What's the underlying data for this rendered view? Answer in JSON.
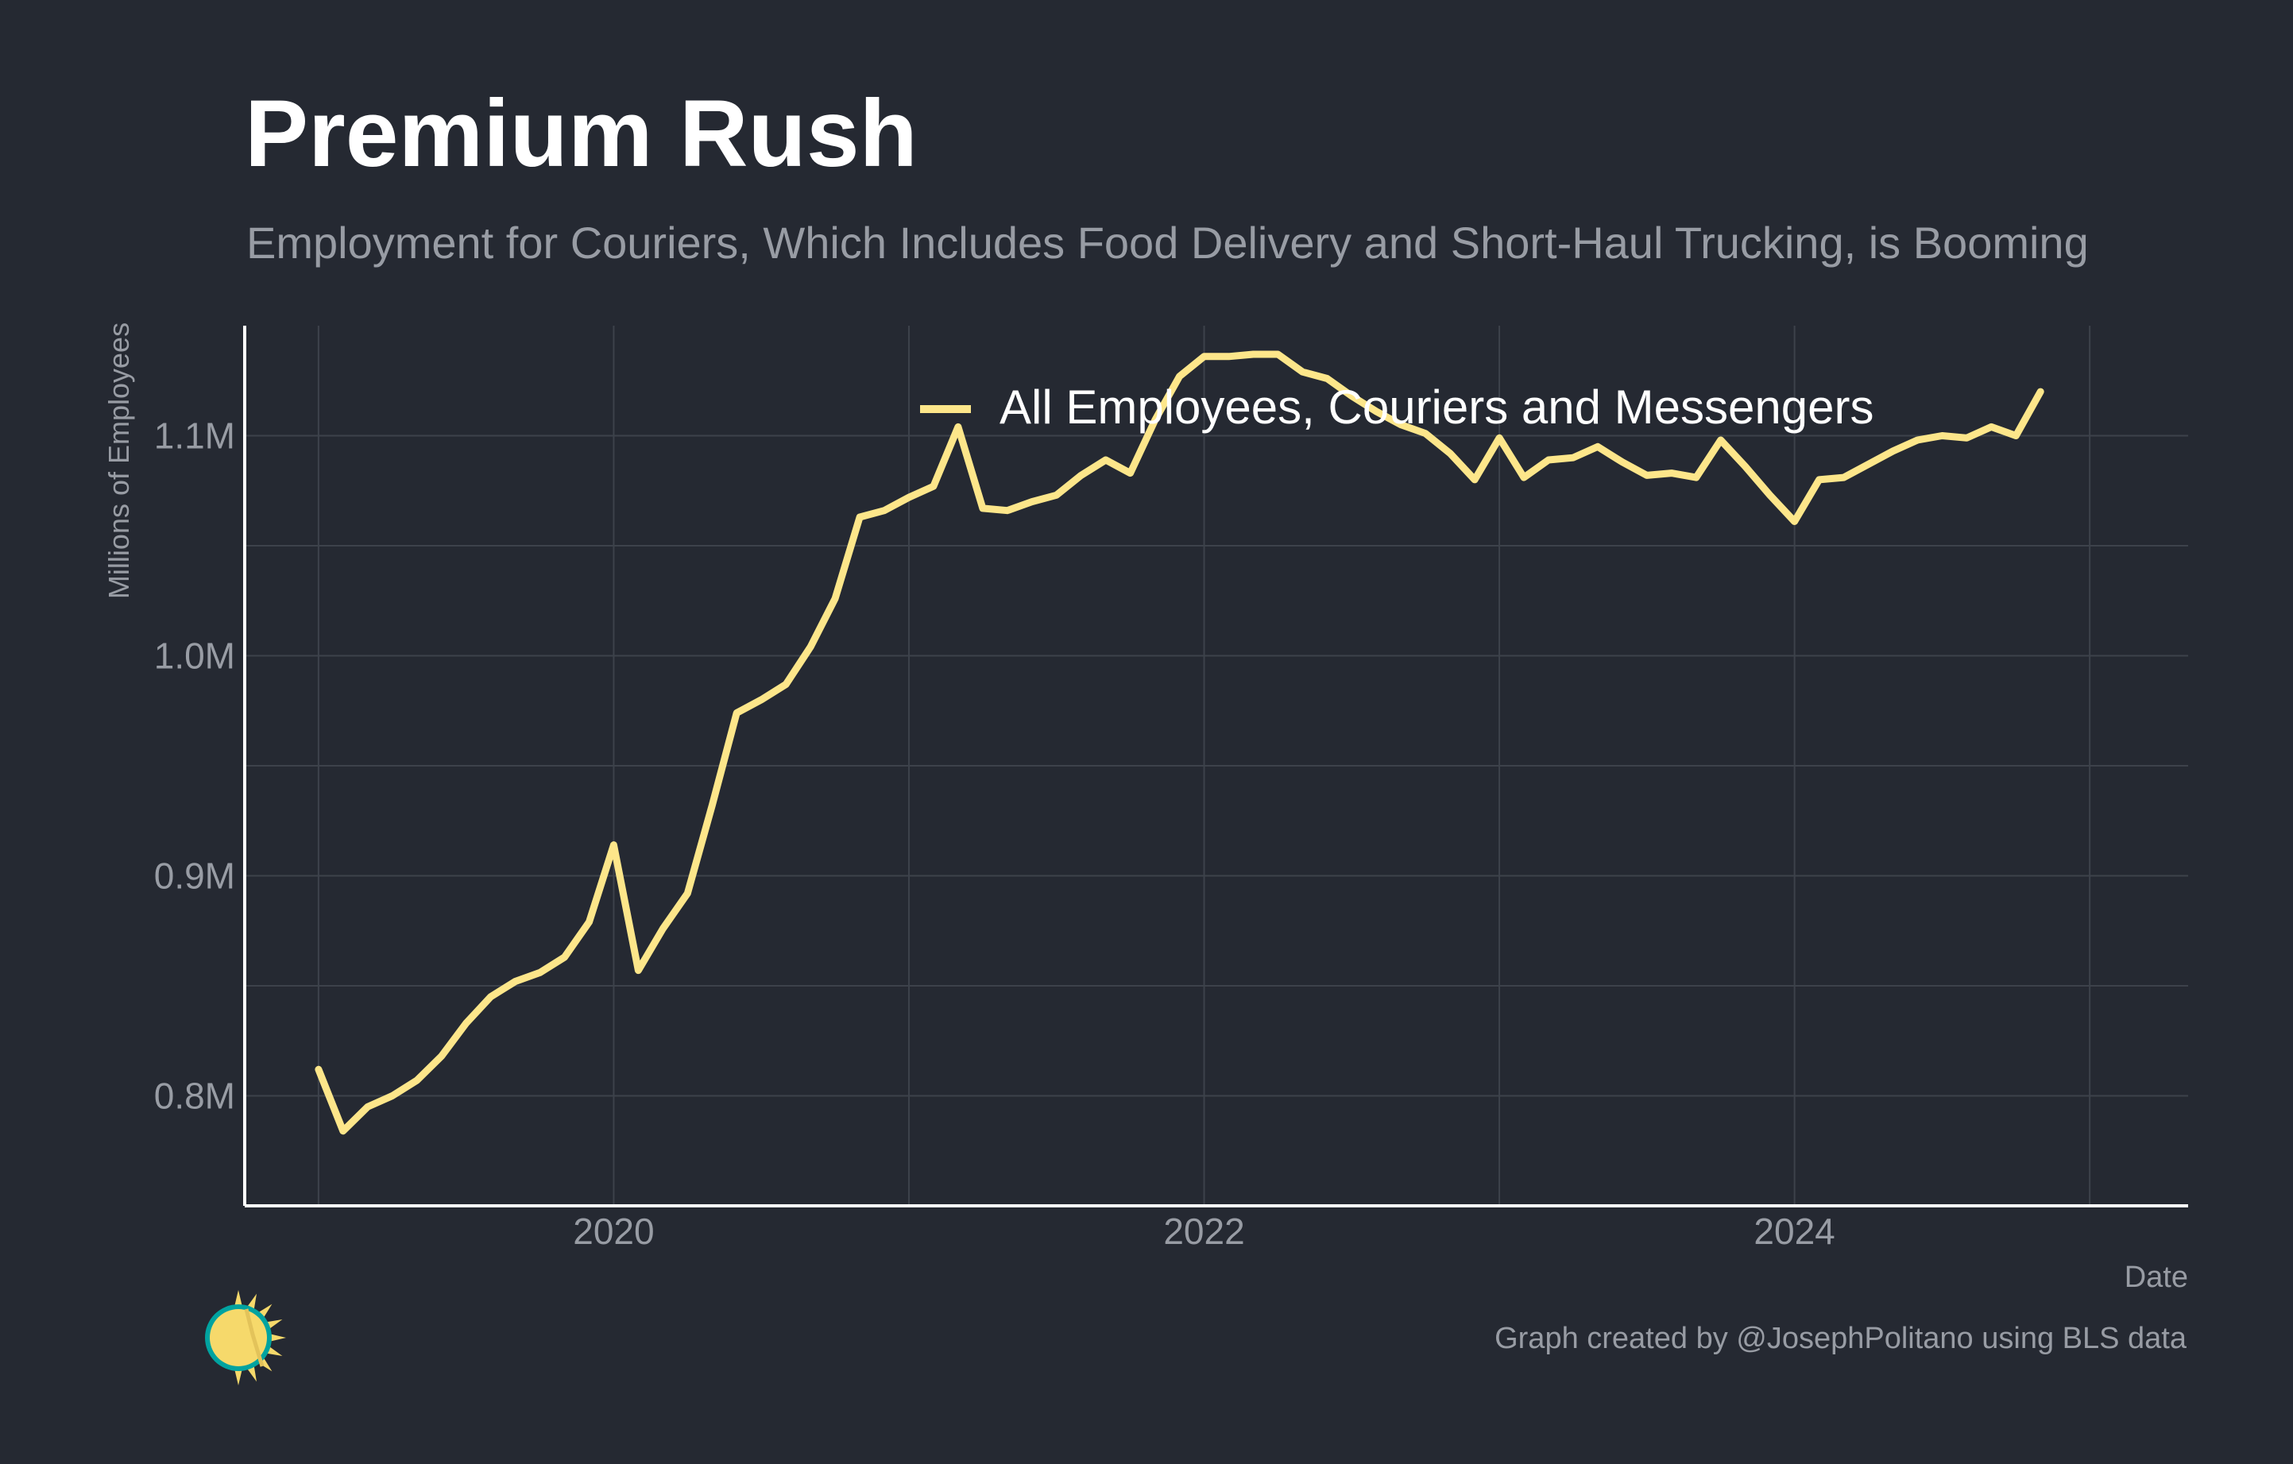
{
  "header": {
    "title": "Premium Rush",
    "subtitle": "Employment for Couriers, Which Includes Food Delivery and Short-Haul Trucking, is Booming"
  },
  "footer": {
    "caption": "Graph created by @JosephPolitano using BLS data",
    "logo_icon": "sun-icon"
  },
  "colors": {
    "background": "#252932",
    "line": "#fde68a",
    "grid": "#3d424b",
    "axis": "#ffffff",
    "muted_text": "#989ca4",
    "logo_sun": "#f6d96b",
    "logo_ring": "#00a3a0"
  },
  "chart_data": {
    "type": "line",
    "title": "Premium Rush",
    "subtitle": "Employment for Couriers, Which Includes Food Delivery and Short-Haul Trucking, is Booming",
    "xlabel": "Date",
    "ylabel": "Millions of Employees",
    "x_tick_labels": [
      "2020",
      "2022",
      "2024"
    ],
    "y_tick_labels": [
      "0.8M",
      "0.9M",
      "1.0M",
      "1.1M"
    ],
    "y_tick_values": [
      0.8,
      0.9,
      1.0,
      1.1
    ],
    "xlim": [
      "2018-10",
      "2025-05"
    ],
    "ylim": [
      0.75,
      1.15
    ],
    "grid": true,
    "legend_position": "top-center",
    "series": [
      {
        "name": "All Employees, Couriers and Messengers",
        "x": [
          "2019-01",
          "2019-02",
          "2019-03",
          "2019-04",
          "2019-05",
          "2019-06",
          "2019-07",
          "2019-08",
          "2019-09",
          "2019-10",
          "2019-11",
          "2019-12",
          "2020-01",
          "2020-02",
          "2020-03",
          "2020-04",
          "2020-05",
          "2020-06",
          "2020-07",
          "2020-08",
          "2020-09",
          "2020-10",
          "2020-11",
          "2020-12",
          "2021-01",
          "2021-02",
          "2021-03",
          "2021-04",
          "2021-05",
          "2021-06",
          "2021-07",
          "2021-08",
          "2021-09",
          "2021-10",
          "2021-11",
          "2021-12",
          "2022-01",
          "2022-02",
          "2022-03",
          "2022-04",
          "2022-05",
          "2022-06",
          "2022-07",
          "2022-08",
          "2022-09",
          "2022-10",
          "2022-11",
          "2022-12",
          "2023-01",
          "2023-02",
          "2023-03",
          "2023-04",
          "2023-05",
          "2023-06",
          "2023-07",
          "2023-08",
          "2023-09",
          "2023-10",
          "2023-11",
          "2023-12",
          "2024-01",
          "2024-02",
          "2024-03",
          "2024-04",
          "2024-05",
          "2024-06",
          "2024-07",
          "2024-08",
          "2024-09",
          "2024-10",
          "2024-11"
        ],
        "y": [
          0.812,
          0.784,
          0.795,
          0.8,
          0.807,
          0.818,
          0.833,
          0.845,
          0.852,
          0.856,
          0.863,
          0.879,
          0.914,
          0.857,
          0.876,
          0.892,
          0.932,
          0.974,
          0.98,
          0.987,
          1.004,
          1.026,
          1.063,
          1.066,
          1.072,
          1.077,
          1.104,
          1.067,
          1.066,
          1.07,
          1.073,
          1.082,
          1.089,
          1.083,
          1.107,
          1.127,
          1.136,
          1.136,
          1.137,
          1.137,
          1.129,
          1.126,
          1.118,
          1.111,
          1.105,
          1.101,
          1.092,
          1.08,
          1.099,
          1.081,
          1.089,
          1.09,
          1.095,
          1.088,
          1.082,
          1.083,
          1.081,
          1.098,
          1.086,
          1.073,
          1.061,
          1.08,
          1.081,
          1.087,
          1.093,
          1.098,
          1.1,
          1.099,
          1.104,
          1.1,
          1.12
        ]
      }
    ]
  }
}
